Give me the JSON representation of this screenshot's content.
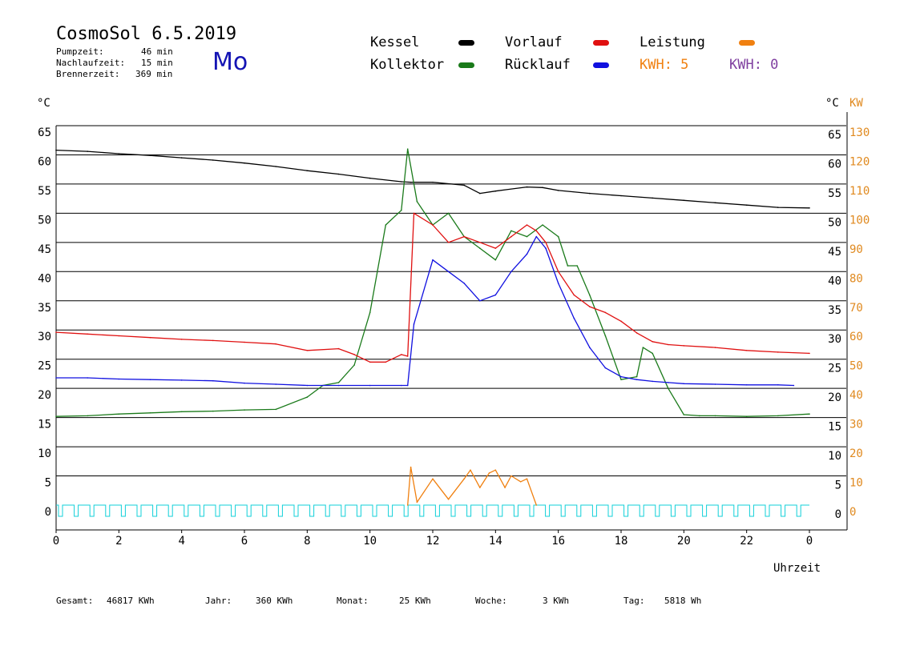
{
  "header": {
    "title": "CosmoSol 6.5.2019",
    "stats": [
      {
        "label": "Pumpzeit:",
        "value": "46 min"
      },
      {
        "label": "Nachlaufzeit:",
        "value": "15 min"
      },
      {
        "label": "Brennerzeit:",
        "value": "369 min"
      }
    ],
    "weekday": "Mo"
  },
  "legend": {
    "kessel": {
      "label": "Kessel",
      "color": "#000000"
    },
    "kollektor": {
      "label": "Kollektor",
      "color": "#1a7a1a"
    },
    "vorlauf": {
      "label": "Vorlauf",
      "color": "#e01010"
    },
    "ruecklauf": {
      "label": "Rücklauf",
      "color": "#1010e0"
    },
    "leistung": {
      "label": "Leistung",
      "color": "#f08010"
    },
    "kwh1": {
      "label": "KWH: 5",
      "color": "#f08010"
    },
    "kwh2": {
      "label": "KWH: 0",
      "color": "#8040a0"
    }
  },
  "axes": {
    "left_unit": "°C",
    "right_unit": "°C",
    "right_unit2": "KW",
    "x_label": "Uhrzeit"
  },
  "footer": {
    "gesamt_label": "Gesamt:",
    "gesamt_value": "46817 KWh",
    "jahr_label": "Jahr:",
    "jahr_value": "360 KWh",
    "monat_label": "Monat:",
    "monat_value": "25 KWh",
    "woche_label": "Woche:",
    "woche_value": "3 KWh",
    "tag_label": "Tag:",
    "tag_value": "5818 Wh"
  },
  "chart_data": {
    "type": "line",
    "ylim": [
      0,
      65
    ],
    "xlim": [
      0,
      24
    ],
    "y_ticks": [
      0,
      5,
      10,
      15,
      20,
      25,
      30,
      35,
      40,
      45,
      50,
      55,
      60,
      65
    ],
    "y2_ticks": [
      0,
      10,
      20,
      30,
      40,
      50,
      60,
      70,
      80,
      90,
      100,
      110,
      120,
      130
    ],
    "x_ticks": [
      "0",
      "2",
      "4",
      "6",
      "8",
      "10",
      "12",
      "14",
      "16",
      "18",
      "20",
      "22",
      "0"
    ],
    "grid": true,
    "series": [
      {
        "name": "Kessel",
        "color": "#000000",
        "x": [
          0,
          1,
          2,
          3,
          4,
          5,
          6,
          7,
          8,
          9,
          10,
          11,
          11.3,
          12,
          13,
          13.5,
          14,
          15,
          15.5,
          16,
          17,
          18,
          19,
          20,
          21,
          22,
          23,
          24
        ],
        "y": [
          60.8,
          60.6,
          60.2,
          59.9,
          59.5,
          59.1,
          58.6,
          58,
          57.3,
          56.7,
          56,
          55.4,
          55.3,
          55.3,
          54.8,
          53.4,
          53.8,
          54.5,
          54.4,
          53.9,
          53.4,
          53,
          52.6,
          52.2,
          51.8,
          51.4,
          51,
          50.9
        ]
      },
      {
        "name": "Kollektor",
        "color": "#1a7a1a",
        "x": [
          0,
          1,
          2,
          3,
          4,
          5,
          6,
          7,
          8,
          8.5,
          9,
          9.5,
          10,
          10.5,
          11,
          11.2,
          11.5,
          12,
          12.5,
          13,
          13.5,
          14,
          14.5,
          15,
          15.5,
          16,
          16.3,
          16.6,
          17,
          17.5,
          18,
          18.5,
          18.7,
          19,
          19.5,
          20,
          20.5,
          21,
          22,
          23,
          24
        ],
        "y": [
          15.2,
          15.3,
          15.6,
          15.8,
          16,
          16.1,
          16.3,
          16.4,
          18.5,
          20.5,
          21,
          24,
          33,
          48,
          50.5,
          61,
          52,
          48,
          50,
          46,
          44,
          42,
          47,
          46,
          48,
          46,
          41,
          41,
          36,
          29,
          21.5,
          22,
          27,
          26,
          20,
          15.5,
          15.3,
          15.3,
          15.2,
          15.3,
          15.6
        ]
      },
      {
        "name": "Vorlauf",
        "color": "#e01010",
        "x": [
          0,
          1,
          2,
          3,
          4,
          5,
          6,
          7,
          8,
          9,
          9.5,
          10,
          10.5,
          11,
          11.2,
          11.4,
          12,
          12.5,
          13,
          13.5,
          14,
          14.5,
          15,
          15.3,
          15.6,
          16,
          16.5,
          17,
          17.5,
          18,
          18.5,
          19,
          19.5,
          20,
          21,
          22,
          23,
          24
        ],
        "y": [
          29.6,
          29.3,
          29,
          28.7,
          28.4,
          28.2,
          27.9,
          27.6,
          26.5,
          26.8,
          25.8,
          24.5,
          24.5,
          25.8,
          25.5,
          50,
          48,
          45,
          46,
          45,
          44,
          46,
          48,
          47,
          45,
          40,
          36,
          34,
          33,
          31.5,
          29.5,
          28,
          27.5,
          27.3,
          27,
          26.5,
          26.2,
          26
        ]
      },
      {
        "name": "Rücklauf",
        "color": "#1010e0",
        "x": [
          0,
          1,
          2,
          3,
          4,
          5,
          6,
          7,
          8,
          9,
          10,
          11,
          11.2,
          11.4,
          12,
          12.5,
          13,
          13.5,
          14,
          14.5,
          15,
          15.3,
          15.6,
          16,
          16.5,
          17,
          17.5,
          18,
          18.5,
          19,
          19.5,
          20,
          21,
          22,
          23,
          23.5
        ],
        "y": [
          21.8,
          21.8,
          21.6,
          21.5,
          21.4,
          21.3,
          20.9,
          20.7,
          20.5,
          20.5,
          20.5,
          20.5,
          20.5,
          31,
          42,
          40,
          38,
          35,
          36,
          40,
          43,
          46,
          44,
          38,
          32,
          27,
          23.5,
          22,
          21.5,
          21.2,
          21,
          20.8,
          20.7,
          20.6,
          20.6,
          20.5
        ]
      },
      {
        "name": "Leistung",
        "color": "#f08010",
        "x": [
          11.2,
          11.3,
          11.5,
          12,
          12.5,
          13,
          13.2,
          13.5,
          13.8,
          14,
          14.3,
          14.5,
          14.8,
          15,
          15.3
        ],
        "y": [
          0,
          6.5,
          0.5,
          4.5,
          1,
          4.5,
          6,
          3,
          5.5,
          6,
          3,
          5,
          4,
          4.5,
          0
        ]
      }
    ]
  }
}
